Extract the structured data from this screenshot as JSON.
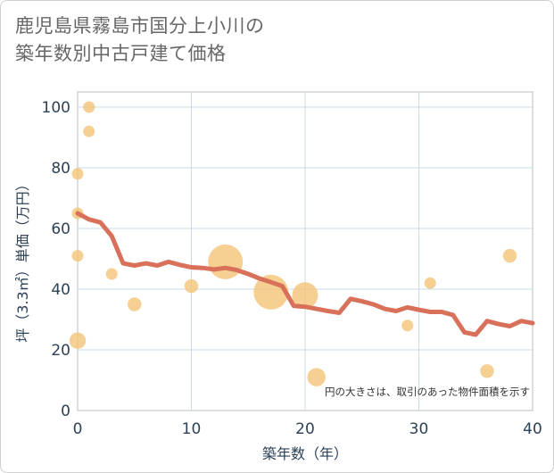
{
  "title_line1": "鹿児島県霧島市国分上小川の",
  "title_line2": "築年数別中古戸建て価格",
  "chart_data": {
    "type": "scatter",
    "xlabel": "築年数（年）",
    "ylabel": "坪（3.3㎡）単価（万円）",
    "xlim": [
      0,
      40
    ],
    "ylim": [
      0,
      105
    ],
    "xticks": [
      0,
      10,
      20,
      30,
      40
    ],
    "yticks": [
      0,
      20,
      40,
      60,
      80,
      100
    ],
    "grid": true,
    "note": "円の大きさは、取引のあった物件面積を示す",
    "colors": {
      "line": "#d9705a",
      "bubble": "#f2c477",
      "grid": "#c9dbe6"
    },
    "scatter_points": [
      {
        "x": 0,
        "y": 78,
        "size": 1
      },
      {
        "x": 0,
        "y": 65,
        "size": 1
      },
      {
        "x": 0,
        "y": 51,
        "size": 1
      },
      {
        "x": 0,
        "y": 23,
        "size": 2
      },
      {
        "x": 1,
        "y": 100,
        "size": 1
      },
      {
        "x": 1,
        "y": 92,
        "size": 1
      },
      {
        "x": 3,
        "y": 45,
        "size": 1
      },
      {
        "x": 5,
        "y": 35,
        "size": 1.4
      },
      {
        "x": 10,
        "y": 41,
        "size": 1.4
      },
      {
        "x": 13,
        "y": 49,
        "size": 9
      },
      {
        "x": 17,
        "y": 39,
        "size": 9
      },
      {
        "x": 20,
        "y": 38,
        "size": 5
      },
      {
        "x": 21,
        "y": 11,
        "size": 2.5
      },
      {
        "x": 29,
        "y": 28,
        "size": 1
      },
      {
        "x": 31,
        "y": 42,
        "size": 1
      },
      {
        "x": 36,
        "y": 13,
        "size": 1.4
      },
      {
        "x": 38,
        "y": 51,
        "size": 1.4
      }
    ],
    "trend_line": {
      "x": [
        0,
        1,
        2,
        3,
        4,
        5,
        6,
        7,
        8,
        9,
        10,
        11,
        12,
        13,
        14,
        15,
        16,
        17,
        18,
        19,
        20,
        21,
        22,
        23,
        24,
        25,
        26,
        27,
        28,
        29,
        30,
        31,
        32,
        33,
        34,
        35,
        36,
        37,
        38,
        39,
        40
      ],
      "y": [
        65,
        63,
        62,
        57.5,
        48.5,
        47.8,
        48.5,
        47.8,
        49,
        48,
        47.2,
        47,
        46.5,
        47,
        46.3,
        45,
        43.5,
        42.3,
        41,
        34.5,
        34.2,
        33.5,
        32.8,
        32.2,
        36.8,
        36,
        35,
        33.5,
        32.8,
        34,
        33.2,
        32.5,
        32.5,
        31.5,
        25.8,
        25,
        29.5,
        28.5,
        27.8,
        29.5,
        28.8
      ]
    }
  }
}
